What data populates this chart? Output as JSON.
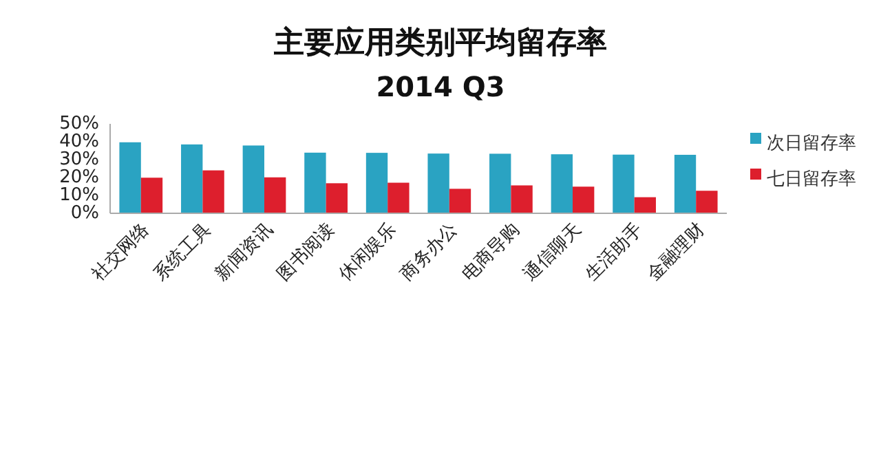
{
  "chart_data": {
    "type": "bar",
    "title": "主要应用类别平均留存率",
    "subtitle": "2014 Q3",
    "categories": [
      "社交网络",
      "系统工具",
      "新闻资讯",
      "图书阅读",
      "休闲娱乐",
      "商务办公",
      "电商导购",
      "通信聊天",
      "生活助手",
      "金融理财"
    ],
    "series": [
      {
        "name": "次日留存率",
        "color": "#2aa3c2",
        "values": [
          39.7,
          38.5,
          37.9,
          33.9,
          33.8,
          33.4,
          33.3,
          33.0,
          32.8,
          32.7
        ]
      },
      {
        "name": "七日留存率",
        "color": "#dd1f2d",
        "values": [
          19.9,
          24.0,
          20.1,
          16.8,
          17.1,
          13.7,
          15.6,
          14.9,
          9.0,
          12.6
        ]
      }
    ],
    "ylim": [
      0,
      50
    ],
    "yticks": [
      {
        "value": 0,
        "label": "0%"
      },
      {
        "value": 10,
        "label": "10%"
      },
      {
        "value": 20,
        "label": "20%"
      },
      {
        "value": 30,
        "label": "30%"
      },
      {
        "value": 40,
        "label": "40%"
      },
      {
        "value": 50,
        "label": "50%"
      }
    ],
    "grid": false,
    "legend": "right"
  }
}
